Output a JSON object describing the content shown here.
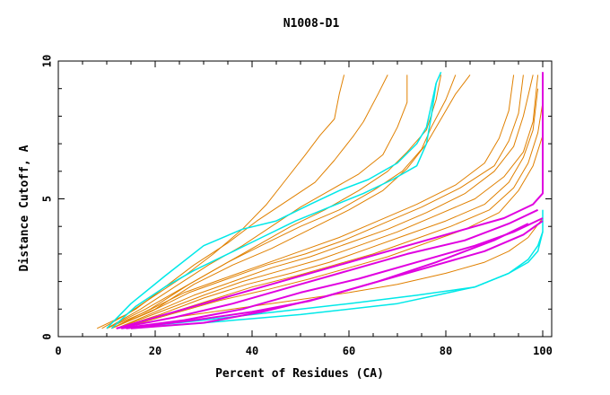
{
  "chart_data": {
    "type": "line",
    "title": "N1008-D1",
    "xlabel": "Percent of Residues (CA)",
    "ylabel": "Distance Cutoff, A",
    "xlim": [
      0,
      100
    ],
    "ylim": [
      0,
      10
    ],
    "x_ticks": [
      0,
      20,
      40,
      60,
      80,
      100
    ],
    "y_ticks": [
      0,
      5,
      10
    ],
    "grid": false,
    "colors": {
      "orange": "#e08000",
      "cyan": "#00e8e8",
      "magenta": "#e000e0"
    },
    "series": [
      {
        "name": "o1",
        "color": "orange",
        "width": 1,
        "points": [
          [
            8,
            0.3
          ],
          [
            14,
            0.8
          ],
          [
            20,
            1.5
          ],
          [
            26,
            2.2
          ],
          [
            32,
            3
          ],
          [
            38,
            3.9
          ],
          [
            43,
            4.8
          ],
          [
            47,
            5.7
          ],
          [
            51,
            6.6
          ],
          [
            54,
            7.3
          ],
          [
            57,
            7.9
          ],
          [
            58,
            8.8
          ],
          [
            59,
            9.5
          ]
        ]
      },
      {
        "name": "o2",
        "color": "orange",
        "width": 1,
        "points": [
          [
            9,
            0.3
          ],
          [
            16,
            1
          ],
          [
            22,
            1.8
          ],
          [
            28,
            2.6
          ],
          [
            35,
            3.4
          ],
          [
            41,
            4.2
          ],
          [
            47,
            4.9
          ],
          [
            53,
            5.6
          ],
          [
            57,
            6.4
          ],
          [
            61,
            7.3
          ],
          [
            63,
            7.8
          ],
          [
            66,
            8.8
          ],
          [
            68,
            9.5
          ]
        ]
      },
      {
        "name": "o3",
        "color": "orange",
        "width": 1,
        "points": [
          [
            10,
            0.3
          ],
          [
            17,
            1
          ],
          [
            24,
            1.8
          ],
          [
            31,
            2.6
          ],
          [
            38,
            3.3
          ],
          [
            44,
            4
          ],
          [
            50,
            4.7
          ],
          [
            56,
            5.3
          ],
          [
            62,
            5.9
          ],
          [
            67,
            6.6
          ],
          [
            70,
            7.6
          ],
          [
            72,
            8.5
          ],
          [
            72,
            9.5
          ]
        ]
      },
      {
        "name": "o4",
        "color": "orange",
        "width": 1,
        "points": [
          [
            10,
            0.3
          ],
          [
            18,
            1
          ],
          [
            26,
            1.8
          ],
          [
            34,
            2.6
          ],
          [
            41,
            3.3
          ],
          [
            48,
            4
          ],
          [
            55,
            4.6
          ],
          [
            62,
            5.3
          ],
          [
            68,
            6
          ],
          [
            72,
            6.7
          ],
          [
            76,
            7.5
          ],
          [
            78,
            8.6
          ],
          [
            79,
            9.5
          ]
        ]
      },
      {
        "name": "o5",
        "color": "orange",
        "width": 1,
        "points": [
          [
            11,
            0.3
          ],
          [
            19,
            1
          ],
          [
            27,
            1.9
          ],
          [
            35,
            2.7
          ],
          [
            43,
            3.4
          ],
          [
            50,
            4
          ],
          [
            58,
            4.6
          ],
          [
            65,
            5.3
          ],
          [
            71,
            6
          ],
          [
            75,
            6.8
          ],
          [
            77,
            7.6
          ],
          [
            80,
            8.6
          ],
          [
            82,
            9.5
          ]
        ]
      },
      {
        "name": "o6",
        "color": "orange",
        "width": 1,
        "points": [
          [
            11,
            0.3
          ],
          [
            20,
            1
          ],
          [
            28,
            1.9
          ],
          [
            36,
            2.6
          ],
          [
            44,
            3.2
          ],
          [
            52,
            3.9
          ],
          [
            60,
            4.6
          ],
          [
            67,
            5.3
          ],
          [
            72,
            6.1
          ],
          [
            76,
            7
          ],
          [
            79,
            7.9
          ],
          [
            82,
            8.8
          ],
          [
            85,
            9.5
          ]
        ]
      },
      {
        "name": "o7",
        "color": "orange",
        "width": 1,
        "points": [
          [
            10,
            0.3
          ],
          [
            18,
            0.9
          ],
          [
            26,
            1.6
          ],
          [
            34,
            2.1
          ],
          [
            42,
            2.6
          ],
          [
            50,
            3.1
          ],
          [
            58,
            3.6
          ],
          [
            66,
            4.2
          ],
          [
            74,
            4.8
          ],
          [
            82,
            5.5
          ],
          [
            88,
            6.3
          ],
          [
            91,
            7.2
          ],
          [
            93,
            8.2
          ],
          [
            94,
            9.5
          ]
        ]
      },
      {
        "name": "o8",
        "color": "orange",
        "width": 1,
        "points": [
          [
            11,
            0.3
          ],
          [
            19,
            0.9
          ],
          [
            27,
            1.6
          ],
          [
            35,
            2.1
          ],
          [
            43,
            2.6
          ],
          [
            51,
            3
          ],
          [
            59,
            3.5
          ],
          [
            67,
            4.1
          ],
          [
            75,
            4.7
          ],
          [
            83,
            5.4
          ],
          [
            90,
            6.2
          ],
          [
            93,
            7.1
          ],
          [
            95,
            8.1
          ],
          [
            96,
            9.5
          ]
        ]
      },
      {
        "name": "o9",
        "color": "orange",
        "width": 1,
        "points": [
          [
            12,
            0.3
          ],
          [
            20,
            0.9
          ],
          [
            28,
            1.5
          ],
          [
            36,
            2
          ],
          [
            44,
            2.5
          ],
          [
            52,
            2.9
          ],
          [
            60,
            3.4
          ],
          [
            68,
            3.9
          ],
          [
            76,
            4.5
          ],
          [
            84,
            5.2
          ],
          [
            90,
            6
          ],
          [
            94,
            6.9
          ],
          [
            96,
            8
          ],
          [
            98,
            9.5
          ]
        ]
      },
      {
        "name": "o10",
        "color": "orange",
        "width": 1,
        "points": [
          [
            12,
            0.3
          ],
          [
            21,
            0.9
          ],
          [
            30,
            1.5
          ],
          [
            38,
            2
          ],
          [
            46,
            2.4
          ],
          [
            54,
            2.8
          ],
          [
            62,
            3.3
          ],
          [
            70,
            3.8
          ],
          [
            78,
            4.4
          ],
          [
            86,
            5
          ],
          [
            92,
            5.8
          ],
          [
            96,
            6.7
          ],
          [
            98,
            7.8
          ],
          [
            99,
            9.5
          ]
        ]
      },
      {
        "name": "o11",
        "color": "orange",
        "width": 1,
        "points": [
          [
            12,
            0.3
          ],
          [
            21,
            0.8
          ],
          [
            30,
            1.4
          ],
          [
            39,
            1.9
          ],
          [
            48,
            2.3
          ],
          [
            56,
            2.7
          ],
          [
            64,
            3.2
          ],
          [
            72,
            3.7
          ],
          [
            80,
            4.2
          ],
          [
            88,
            4.8
          ],
          [
            93,
            5.6
          ],
          [
            96,
            6.5
          ],
          [
            98,
            7.5
          ],
          [
            99,
            9
          ]
        ]
      },
      {
        "name": "o12",
        "color": "orange",
        "width": 1,
        "points": [
          [
            13,
            0.3
          ],
          [
            22,
            0.8
          ],
          [
            31,
            1.3
          ],
          [
            40,
            1.8
          ],
          [
            49,
            2.2
          ],
          [
            57,
            2.6
          ],
          [
            65,
            3
          ],
          [
            73,
            3.5
          ],
          [
            81,
            4
          ],
          [
            89,
            4.6
          ],
          [
            94,
            5.4
          ],
          [
            97,
            6.3
          ],
          [
            99,
            7.4
          ],
          [
            100,
            8.5
          ]
        ]
      },
      {
        "name": "o13",
        "color": "orange",
        "width": 1,
        "points": [
          [
            13,
            0.3
          ],
          [
            23,
            0.8
          ],
          [
            33,
            1.3
          ],
          [
            43,
            1.7
          ],
          [
            52,
            2.1
          ],
          [
            60,
            2.5
          ],
          [
            68,
            2.9
          ],
          [
            76,
            3.4
          ],
          [
            84,
            3.9
          ],
          [
            91,
            4.5
          ],
          [
            95,
            5.3
          ],
          [
            98,
            6.2
          ],
          [
            100,
            7.3
          ]
        ]
      },
      {
        "name": "o14",
        "color": "orange",
        "width": 1,
        "points": [
          [
            12,
            0.3
          ],
          [
            24,
            0.7
          ],
          [
            36,
            1
          ],
          [
            48,
            1.3
          ],
          [
            60,
            1.6
          ],
          [
            70,
            1.9
          ],
          [
            80,
            2.3
          ],
          [
            88,
            2.7
          ],
          [
            93,
            3.1
          ],
          [
            97,
            3.6
          ],
          [
            100,
            4.3
          ]
        ]
      },
      {
        "name": "c1",
        "color": "cyan",
        "width": 1.5,
        "points": [
          [
            10,
            0.3
          ],
          [
            15,
            1.2
          ],
          [
            22,
            2.2
          ],
          [
            30,
            3.3
          ],
          [
            38,
            3.9
          ],
          [
            45,
            4.2
          ],
          [
            52,
            4.8
          ],
          [
            58,
            5.3
          ],
          [
            64,
            5.7
          ],
          [
            70,
            6.3
          ],
          [
            74,
            7
          ],
          [
            76,
            7.6
          ],
          [
            77,
            8.4
          ],
          [
            78,
            9.2
          ],
          [
            79,
            9.6
          ]
        ]
      },
      {
        "name": "c2",
        "color": "cyan",
        "width": 1.5,
        "points": [
          [
            11,
            0.3
          ],
          [
            16,
            1.1
          ],
          [
            22,
            1.8
          ],
          [
            28,
            2.4
          ],
          [
            35,
            3
          ],
          [
            42,
            3.6
          ],
          [
            49,
            4.2
          ],
          [
            56,
            4.7
          ],
          [
            63,
            5.2
          ],
          [
            69,
            5.7
          ],
          [
            74,
            6.2
          ],
          [
            76,
            7
          ],
          [
            77,
            8
          ],
          [
            78,
            9.2
          ]
        ]
      },
      {
        "name": "c3",
        "color": "cyan",
        "width": 1.5,
        "points": [
          [
            14,
            0.3
          ],
          [
            30,
            0.6
          ],
          [
            45,
            0.9
          ],
          [
            60,
            1.2
          ],
          [
            74,
            1.5
          ],
          [
            86,
            1.8
          ],
          [
            93,
            2.3
          ],
          [
            97,
            2.8
          ],
          [
            99,
            3.3
          ],
          [
            100,
            3.8
          ],
          [
            100,
            4.6
          ]
        ]
      },
      {
        "name": "c4",
        "color": "cyan",
        "width": 1.5,
        "points": [
          [
            15,
            0.3
          ],
          [
            30,
            0.5
          ],
          [
            50,
            0.8
          ],
          [
            70,
            1.2
          ],
          [
            86,
            1.8
          ],
          [
            93,
            2.3
          ],
          [
            97,
            2.7
          ],
          [
            99,
            3.1
          ],
          [
            100,
            3.8
          ]
        ]
      },
      {
        "name": "m1",
        "color": "magenta",
        "width": 2,
        "points": [
          [
            12,
            0.3
          ],
          [
            22,
            0.8
          ],
          [
            34,
            1.4
          ],
          [
            46,
            2
          ],
          [
            58,
            2.6
          ],
          [
            70,
            3.2
          ],
          [
            82,
            3.8
          ],
          [
            92,
            4.3
          ],
          [
            98,
            4.8
          ],
          [
            100,
            5.2
          ],
          [
            100,
            9.6
          ]
        ]
      },
      {
        "name": "m2",
        "color": "magenta",
        "width": 2,
        "points": [
          [
            12,
            0.3
          ],
          [
            24,
            0.7
          ],
          [
            36,
            1.2
          ],
          [
            48,
            1.8
          ],
          [
            60,
            2.4
          ],
          [
            72,
            3
          ],
          [
            84,
            3.5
          ],
          [
            93,
            4.1
          ],
          [
            99,
            4.6
          ]
        ]
      },
      {
        "name": "m3",
        "color": "magenta",
        "width": 2,
        "points": [
          [
            13,
            0.3
          ],
          [
            26,
            0.6
          ],
          [
            38,
            1
          ],
          [
            50,
            1.6
          ],
          [
            62,
            2.1
          ],
          [
            74,
            2.7
          ],
          [
            86,
            3.3
          ],
          [
            94,
            3.8
          ],
          [
            100,
            4.3
          ]
        ]
      },
      {
        "name": "m4",
        "color": "magenta",
        "width": 2,
        "points": [
          [
            14,
            0.3
          ],
          [
            28,
            0.6
          ],
          [
            40,
            0.9
          ],
          [
            52,
            1.3
          ],
          [
            64,
            1.9
          ],
          [
            76,
            2.5
          ],
          [
            88,
            3.1
          ],
          [
            96,
            3.7
          ],
          [
            100,
            4.2
          ]
        ]
      },
      {
        "name": "m5",
        "color": "magenta",
        "width": 2,
        "points": [
          [
            15,
            0.3
          ],
          [
            30,
            0.5
          ],
          [
            42,
            0.9
          ],
          [
            54,
            1.4
          ],
          [
            66,
            2
          ],
          [
            78,
            2.7
          ],
          [
            90,
            3.5
          ],
          [
            97,
            4.1
          ]
        ]
      }
    ]
  }
}
